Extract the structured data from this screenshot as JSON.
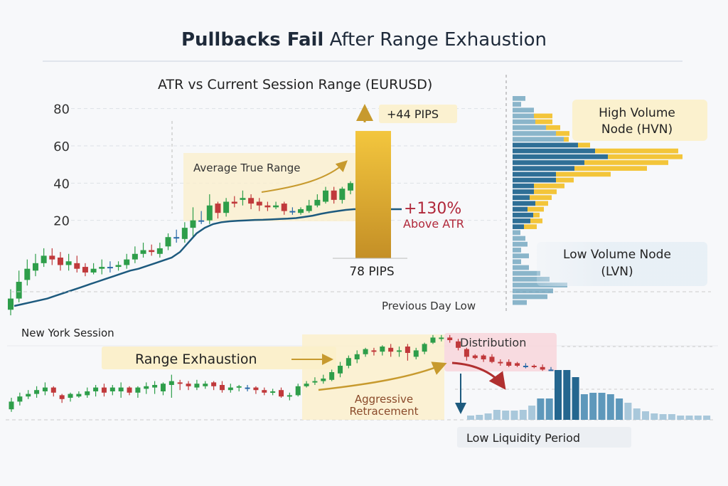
{
  "title": {
    "bold": "Pullbacks Fail",
    "rest": " After Range Exhaustion"
  },
  "colors": {
    "bull": "#2e9e4a",
    "bear": "#c0393b",
    "neutral": "#2a6aa8",
    "atr_line": "#1d5a7e",
    "gold": "#e9b530",
    "highlight": "#fbefc9",
    "distribution": "#f8d6da",
    "volume_blue": "#2f6f96",
    "volume_yellow": "#f3c53a",
    "red_text": "#b0283a"
  },
  "chart_data": [
    {
      "type": "candlestick",
      "title": "ATR vs Current Session Range (EURUSD)",
      "ylim": [
        -28,
        85
      ],
      "yticks": [
        20,
        40,
        60,
        80
      ],
      "grid": true,
      "candles": [
        [
          -28,
          -22,
          -17,
          -31
        ],
        [
          -22,
          -13,
          -7,
          -24
        ],
        [
          -12,
          -6,
          -1,
          -15
        ],
        [
          -7,
          -3,
          2,
          -10
        ],
        [
          -3,
          1,
          5,
          -5
        ],
        [
          1,
          -1,
          5,
          -4
        ],
        [
          0,
          -4,
          3,
          -7
        ],
        [
          -4,
          -2,
          2,
          -7
        ],
        [
          -3,
          -6,
          1,
          -8
        ],
        [
          -5,
          -8,
          -3,
          -10
        ],
        [
          -8,
          -6,
          -3,
          -9
        ],
        [
          -6,
          -5,
          -1,
          -9
        ],
        [
          -5,
          -5,
          -2,
          -8
        ],
        [
          -5,
          -4,
          -2,
          -7
        ],
        [
          -4,
          -1,
          2,
          -6
        ],
        [
          -1,
          2,
          6,
          -3
        ],
        [
          2,
          4,
          8,
          0
        ],
        [
          4,
          3,
          7,
          1
        ],
        [
          2,
          5,
          8,
          0
        ],
        [
          6,
          11,
          13,
          4
        ],
        [
          11,
          11,
          15,
          8
        ],
        [
          10,
          16,
          19,
          8
        ],
        [
          16,
          20,
          27,
          11
        ],
        [
          20,
          20,
          25,
          18
        ],
        [
          20,
          28,
          34,
          18
        ],
        [
          29,
          24,
          30,
          21
        ],
        [
          24,
          30,
          32,
          22
        ],
        [
          30,
          29,
          33,
          27
        ],
        [
          31,
          32,
          36,
          28
        ],
        [
          32,
          29,
          34,
          26
        ],
        [
          30,
          28,
          32,
          25
        ],
        [
          28,
          27,
          30,
          25
        ],
        [
          27,
          28,
          30,
          26
        ],
        [
          29,
          25,
          30,
          23
        ],
        [
          25,
          25,
          27,
          23
        ],
        [
          24,
          26,
          27,
          23
        ],
        [
          25,
          28,
          31,
          24
        ],
        [
          28,
          31,
          34,
          27
        ],
        [
          30,
          36,
          38,
          29
        ],
        [
          36,
          31,
          38,
          29
        ],
        [
          31,
          37,
          38,
          29
        ],
        [
          36,
          40,
          41,
          34
        ]
      ],
      "series": [
        {
          "name": "Average True Range",
          "values": [
            -26,
            -25,
            -24,
            -23,
            -22,
            -20.5,
            -19,
            -17.5,
            -16,
            -14.5,
            -13,
            -11.5,
            -10,
            -8.5,
            -7,
            -6,
            -4.5,
            -3,
            -1.5,
            0,
            3,
            8,
            13,
            16,
            18,
            19,
            19.5,
            19.8,
            20,
            20.2,
            20.3,
            20.5,
            20.7,
            20.9,
            21.2,
            21.8,
            22.5,
            23.5,
            24.3,
            25,
            25.6,
            26
          ]
        }
      ],
      "session_range_bar": {
        "value": 78,
        "label": "78 PIPS",
        "top_value": 68
      },
      "annotations": {
        "atr_label": "Average True Range",
        "excess_label": "+44 PIPS",
        "percent": "+130%",
        "percent_caption": "Above ATR",
        "prev_day_low": "Previous Day Low"
      }
    },
    {
      "type": "volume_profile",
      "rows": [
        [
          18,
          0
        ],
        [
          12,
          0
        ],
        [
          30,
          0
        ],
        [
          30,
          26
        ],
        [
          32,
          24
        ],
        [
          47,
          20
        ],
        [
          61,
          19
        ],
        [
          72,
          7
        ],
        [
          92,
          17
        ],
        [
          116,
          117
        ],
        [
          134,
          105
        ],
        [
          101,
          118
        ],
        [
          87,
          102
        ],
        [
          61,
          77
        ],
        [
          61,
          25
        ],
        [
          30,
          43
        ],
        [
          30,
          32
        ],
        [
          24,
          31
        ],
        [
          32,
          18
        ],
        [
          21,
          23
        ],
        [
          29,
          9
        ],
        [
          25,
          17
        ],
        [
          16,
          18
        ],
        [
          11,
          0
        ],
        [
          18,
          0
        ],
        [
          21,
          0
        ],
        [
          12,
          0
        ],
        [
          23,
          0
        ],
        [
          12,
          0
        ],
        [
          23,
          0
        ],
        [
          39,
          0
        ],
        [
          52,
          0
        ],
        [
          77,
          0
        ],
        [
          57,
          0
        ],
        [
          49,
          0
        ],
        [
          20,
          0
        ]
      ],
      "labels": {
        "hvn_line1": "High Volume",
        "hvn_line2": "Node (HVN)",
        "lvn_line1": "Low Volume Node",
        "lvn_line2": "(LVN)"
      }
    },
    {
      "type": "candlestick",
      "title": "New York Session",
      "candles": [
        [
          22,
          34,
          40,
          18
        ],
        [
          34,
          42,
          48,
          28
        ],
        [
          42,
          46,
          52,
          38
        ],
        [
          46,
          52,
          58,
          40
        ],
        [
          50,
          56,
          64,
          44
        ],
        [
          56,
          48,
          58,
          42
        ],
        [
          44,
          38,
          46,
          32
        ],
        [
          40,
          46,
          48,
          34
        ],
        [
          42,
          46,
          50,
          40
        ],
        [
          44,
          50,
          56,
          40
        ],
        [
          50,
          56,
          60,
          42
        ],
        [
          56,
          48,
          62,
          42
        ],
        [
          50,
          56,
          60,
          44
        ],
        [
          50,
          56,
          64,
          40
        ],
        [
          56,
          48,
          58,
          44
        ],
        [
          48,
          56,
          58,
          40
        ],
        [
          54,
          58,
          64,
          46
        ],
        [
          56,
          60,
          66,
          46
        ],
        [
          50,
          62,
          64,
          44
        ],
        [
          60,
          66,
          76,
          40
        ],
        [
          64,
          62,
          68,
          52
        ],
        [
          62,
          58,
          66,
          52
        ],
        [
          56,
          62,
          68,
          52
        ],
        [
          58,
          62,
          66,
          54
        ],
        [
          64,
          58,
          66,
          52
        ],
        [
          60,
          52,
          66,
          48
        ],
        [
          52,
          56,
          62,
          48
        ],
        [
          56,
          58,
          60,
          50
        ],
        [
          56,
          56,
          60,
          50
        ],
        [
          56,
          52,
          58,
          46
        ],
        [
          52,
          48,
          56,
          44
        ],
        [
          48,
          50,
          54,
          44
        ],
        [
          52,
          42,
          56,
          40
        ],
        [
          42,
          44,
          48,
          36
        ],
        [
          44,
          58,
          62,
          42
        ],
        [
          58,
          62,
          66,
          56
        ],
        [
          64,
          66,
          72,
          60
        ],
        [
          66,
          70,
          76,
          62
        ],
        [
          68,
          80,
          84,
          66
        ],
        [
          78,
          90,
          96,
          72
        ],
        [
          90,
          102,
          106,
          86
        ],
        [
          100,
          108,
          114,
          94
        ],
        [
          108,
          116,
          118,
          104
        ],
        [
          114,
          112,
          118,
          106
        ],
        [
          112,
          120,
          122,
          106
        ],
        [
          118,
          112,
          124,
          104
        ],
        [
          112,
          114,
          120,
          104
        ],
        [
          120,
          110,
          124,
          98
        ],
        [
          104,
          114,
          118,
          100
        ],
        [
          112,
          124,
          126,
          108
        ],
        [
          126,
          134,
          138,
          124
        ],
        [
          132,
          134,
          138,
          128
        ],
        [
          134,
          130,
          138,
          126
        ],
        [
          128,
          118,
          132,
          114
        ],
        [
          116,
          104,
          118,
          98
        ],
        [
          106,
          102,
          108,
          100
        ],
        [
          106,
          100,
          108,
          96
        ],
        [
          104,
          96,
          108,
          94
        ],
        [
          96,
          94,
          100,
          90
        ],
        [
          96,
          90,
          100,
          88
        ],
        [
          94,
          90,
          96,
          88
        ],
        [
          90,
          90,
          94,
          86
        ],
        [
          90,
          88,
          92,
          86
        ],
        [
          88,
          84,
          92,
          82
        ],
        [
          84,
          84,
          88,
          82
        ]
      ],
      "annotations": {
        "range_exhaustion": "Range Exhaustion",
        "retracement_line1": "Aggressive",
        "retracement_line2": "Retracement",
        "distribution": "Distribution",
        "low_liquidity": "Low Liquidity Period"
      }
    },
    {
      "type": "bar",
      "values": [
        6,
        7,
        9,
        14,
        13,
        13,
        14,
        20,
        30,
        30,
        70,
        70,
        60,
        36,
        38,
        38,
        36,
        30,
        24,
        16,
        12,
        9,
        8,
        8,
        6,
        6,
        6,
        6
      ]
    }
  ]
}
